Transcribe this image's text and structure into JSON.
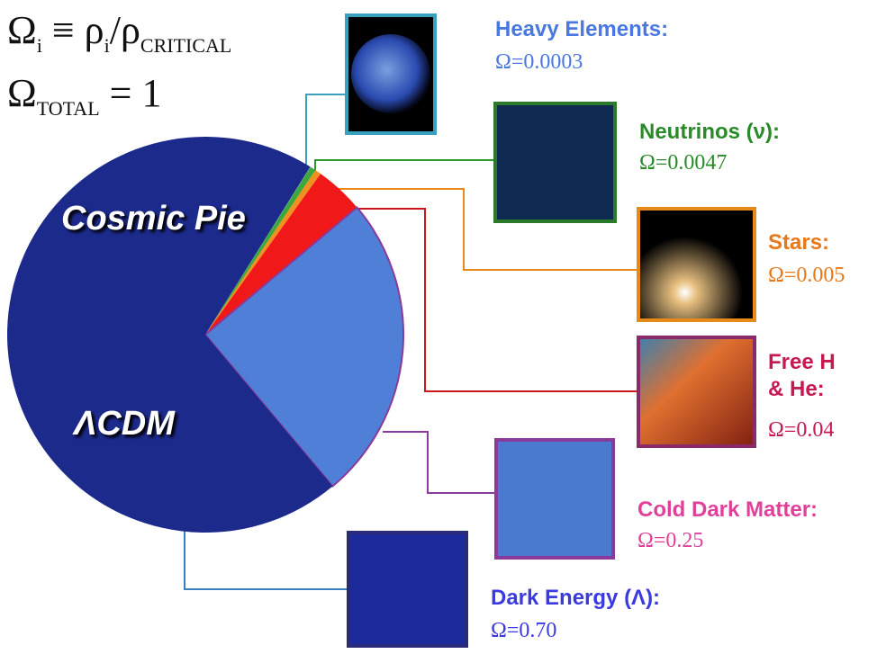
{
  "chart_data": {
    "type": "pie",
    "title": "Cosmic Pie",
    "subtitle": "ΛCDM",
    "annotations": {
      "density": [
        "Ω",
        "i",
        " ≡ ρ",
        "i",
        "/ρ",
        "CRITICAL"
      ],
      "total": [
        "Ω",
        "TOTAL",
        " = 1"
      ]
    },
    "categories": [
      "Heavy Elements:",
      "Neutrinos (ν):",
      "Stars:",
      "Free H & He:",
      "Cold Dark Matter:",
      "Dark Energy (Λ):"
    ],
    "values": [
      0.0003,
      0.0047,
      0.005,
      0.04,
      0.25,
      0.7
    ],
    "value_labels": [
      "Ω=0.0003",
      "Ω=0.0047",
      "Ω=0.005",
      "Ω=0.04",
      "Ω=0.25",
      "Ω=0.70"
    ],
    "colors": [
      "#6ab4d8",
      "#3aa83a",
      "#f09020",
      "#f01818",
      "#4f7fd6",
      "#1c2a8c"
    ],
    "label_colors": [
      "#4a78e0",
      "#2a8a2a",
      "#e8781a",
      "#c81850",
      "#e0409a",
      "#3a3ae0"
    ]
  }
}
